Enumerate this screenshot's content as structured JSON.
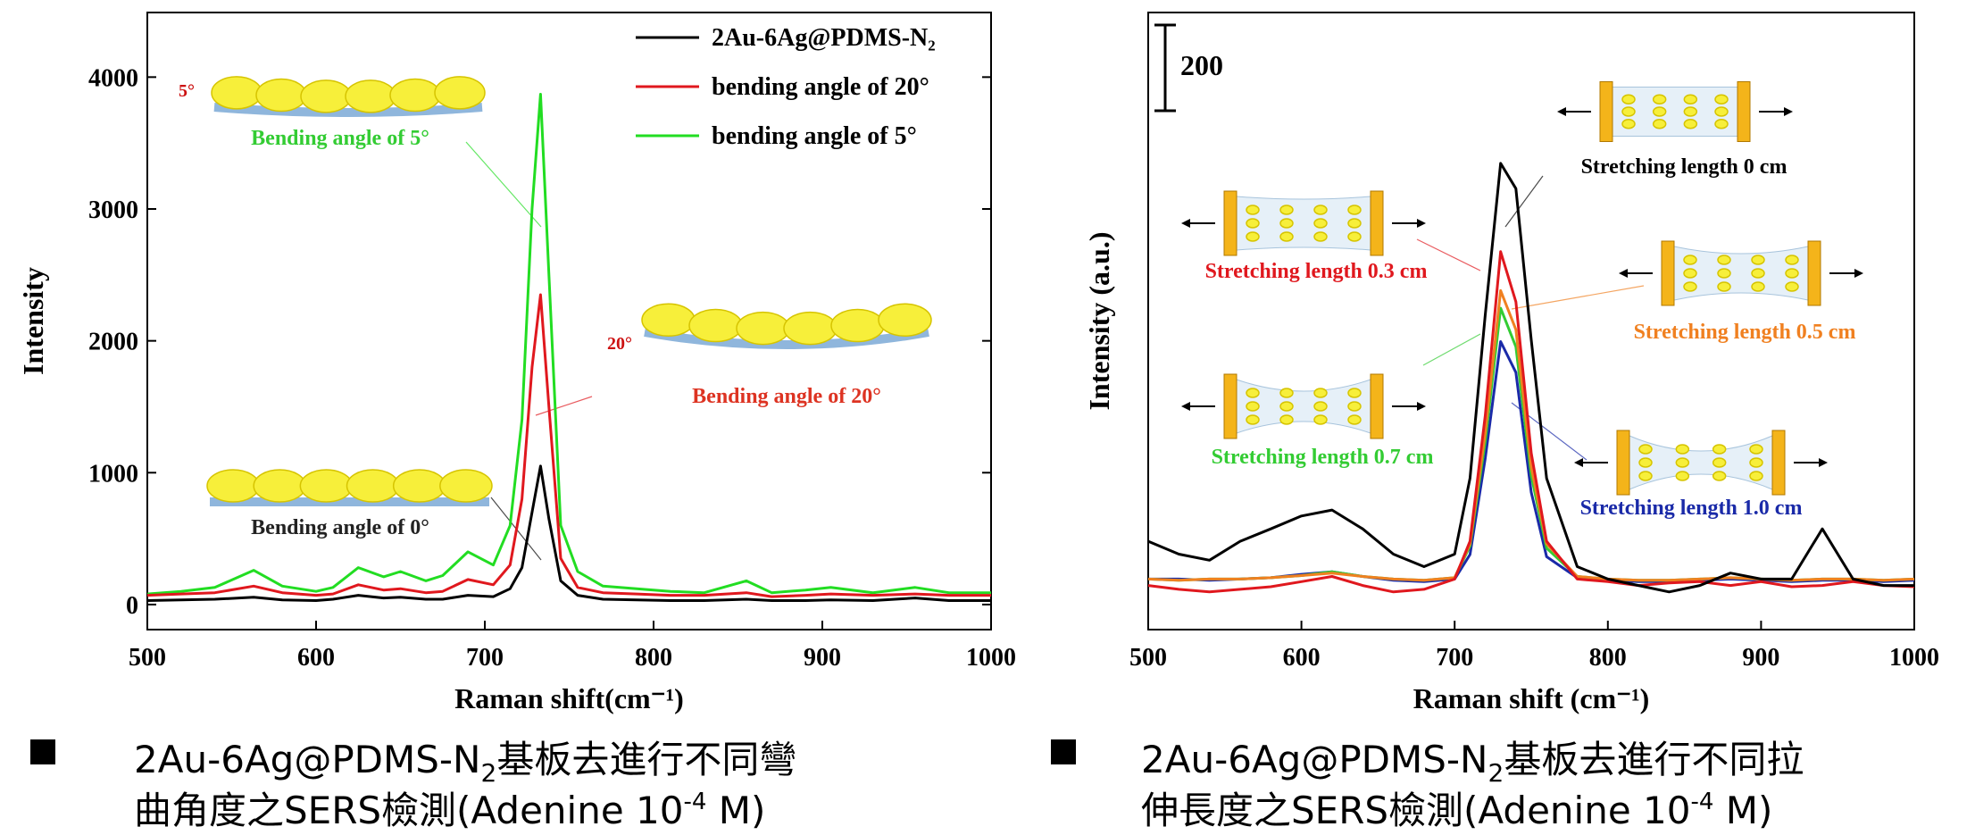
{
  "chart_data": [
    {
      "type": "line",
      "x_label": "Raman shift(cm⁻¹)",
      "y_label": "Intensity",
      "x": [
        500,
        520,
        540,
        563,
        580,
        600,
        610,
        625,
        640,
        650,
        665,
        675,
        690,
        705,
        715,
        722,
        728,
        733,
        738,
        745,
        755,
        770,
        790,
        810,
        830,
        855,
        870,
        890,
        905,
        930,
        955,
        975,
        1000
      ],
      "series": [
        {
          "name": "2Au-6Ag@PDMS-N₂",
          "color": "#000000",
          "values": [
            30,
            35,
            40,
            55,
            35,
            30,
            40,
            70,
            50,
            55,
            40,
            40,
            70,
            60,
            120,
            280,
            700,
            1050,
            650,
            180,
            70,
            40,
            35,
            30,
            30,
            40,
            30,
            30,
            35,
            30,
            50,
            30,
            30
          ]
        },
        {
          "name": "bending angle of 20°",
          "color": "#e0181e",
          "values": [
            70,
            80,
            90,
            140,
            90,
            70,
            80,
            150,
            110,
            120,
            90,
            100,
            190,
            150,
            300,
            800,
            1800,
            2350,
            1500,
            350,
            130,
            90,
            80,
            70,
            70,
            90,
            60,
            70,
            80,
            70,
            80,
            70,
            70
          ]
        },
        {
          "name": "bending angle of 5°",
          "color": "#22dd22",
          "values": [
            80,
            100,
            130,
            260,
            140,
            100,
            130,
            280,
            210,
            250,
            180,
            220,
            400,
            300,
            600,
            1400,
            3000,
            3870,
            2500,
            600,
            250,
            140,
            120,
            100,
            90,
            180,
            90,
            110,
            130,
            90,
            130,
            90,
            90
          ]
        }
      ],
      "xlim": [
        500,
        1000
      ],
      "xticks": [
        500,
        600,
        700,
        800,
        900,
        1000
      ],
      "ylim": [
        -190,
        4490
      ],
      "yticks": [
        0,
        1000,
        2000,
        3000,
        4000
      ],
      "legend": "upper right",
      "annotations": [
        {
          "text": "Bending angle of 5°",
          "color": "#33cc33"
        },
        {
          "text": "5°",
          "color": "#cc1111"
        },
        {
          "text": "Bending angle of 20°",
          "color": "#dd3322"
        },
        {
          "text": "20°",
          "color": "#cc1111"
        },
        {
          "text": "Bending angle of 0°",
          "color": "#222222"
        }
      ]
    },
    {
      "type": "line",
      "x_label": "Raman shift (cm⁻¹)",
      "y_label": "Intensity (a.u.)",
      "x": [
        500,
        520,
        540,
        560,
        580,
        600,
        620,
        640,
        660,
        680,
        700,
        710,
        720,
        730,
        740,
        750,
        760,
        780,
        800,
        820,
        840,
        860,
        880,
        900,
        920,
        940,
        960,
        980,
        1000
      ],
      "series": [
        {
          "name": "Stretching length 0 cm",
          "color": "#000000",
          "values": [
            206,
            176,
            162,
            206,
            235,
            265,
            279,
            235,
            176,
            147,
            176,
            353,
            735,
            1088,
            1029,
            676,
            353,
            147,
            118,
            103,
            88,
            103,
            132,
            118,
            118,
            235,
            118,
            103,
            103
          ]
        },
        {
          "name": "Stretching length 0.3 cm",
          "color": "#e0181e",
          "values": [
            103,
            94,
            88,
            94,
            100,
            112,
            124,
            103,
            88,
            94,
            118,
            206,
            500,
            882,
            765,
            412,
            206,
            118,
            112,
            103,
            109,
            112,
            103,
            112,
            100,
            103,
            112,
            103,
            100
          ]
        },
        {
          "name": "Stretching length 0.5 cm",
          "color": "#f08020",
          "values": [
            118,
            115,
            118,
            118,
            121,
            126,
            132,
            124,
            118,
            115,
            121,
            200,
            460,
            791,
            700,
            380,
            200,
            124,
            118,
            115,
            115,
            118,
            121,
            118,
            115,
            118,
            118,
            115,
            118
          ]
        },
        {
          "name": "Stretching length 0.7 cm",
          "color": "#33cc33",
          "values": [
            118,
            115,
            118,
            118,
            121,
            126,
            135,
            124,
            118,
            115,
            121,
            195,
            440,
            750,
            660,
            360,
            190,
            124,
            118,
            115,
            115,
            118,
            121,
            118,
            115,
            118,
            118,
            115,
            118
          ]
        },
        {
          "name": "Stretching length 1.0 cm",
          "color": "#1a2aa8",
          "values": [
            118,
            118,
            115,
            118,
            121,
            129,
            135,
            124,
            115,
            112,
            118,
            175,
            400,
            672,
            600,
            320,
            170,
            121,
            115,
            112,
            112,
            115,
            118,
            115,
            112,
            115,
            115,
            112,
            115
          ]
        }
      ],
      "xlim": [
        500,
        1000
      ],
      "xticks": [
        500,
        600,
        700,
        800,
        900,
        1000
      ],
      "ylim": [
        0,
        1440
      ],
      "scale_bar": 200,
      "legend": false
    }
  ],
  "captions": [
    {
      "a": "2Au-6Ag@PDMS-N",
      "sub": "2",
      "b": "基板去進行不同彎",
      "c": "曲角度之SERS檢測(Adenine 10",
      "sup": "-4",
      "d": " M)"
    },
    {
      "a": "2Au-6Ag@PDMS-N",
      "sub": "2",
      "b": "基板去進行不同拉",
      "c": "伸長度之SERS檢測(Adenine 10",
      "sup": "-4",
      "d": " M)"
    }
  ]
}
